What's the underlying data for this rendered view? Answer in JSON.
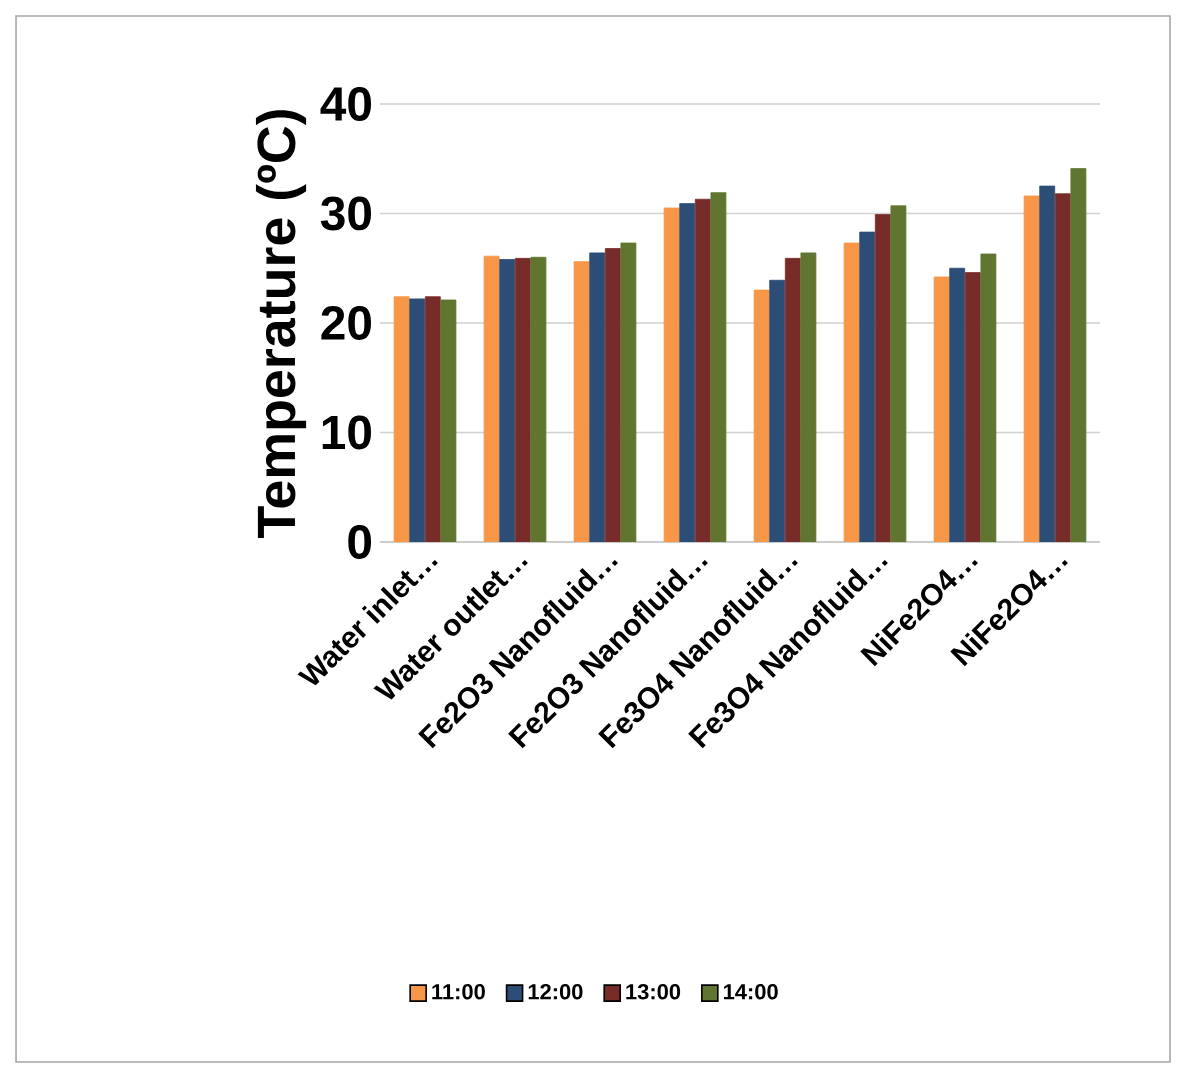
{
  "chart_data": {
    "type": "bar",
    "ylabel": "Temperature (ºC)",
    "categories": [
      "Water inlet…",
      "Water outlet…",
      "Fe2O3 Nanofluid…",
      "Fe2O3 Nanofluid…",
      "Fe3O4 Nanofluid…",
      "Fe3O4 Nanofluid…",
      "NiFe2O4…",
      "NiFe2O4…"
    ],
    "series": [
      {
        "name": "11:00",
        "color": "#f79646",
        "values": [
          22.4,
          26.1,
          25.6,
          30.5,
          23.0,
          27.3,
          24.2,
          31.6
        ]
      },
      {
        "name": "12:00",
        "color": "#2c4d75",
        "values": [
          22.2,
          25.8,
          26.4,
          30.9,
          23.9,
          28.3,
          25.0,
          32.5
        ]
      },
      {
        "name": "13:00",
        "color": "#772c2a",
        "values": [
          22.4,
          25.9,
          26.8,
          31.3,
          25.9,
          29.9,
          24.6,
          31.8
        ]
      },
      {
        "name": "14:00",
        "color": "#5f7530",
        "values": [
          22.1,
          26.0,
          27.3,
          31.9,
          26.4,
          30.7,
          26.3,
          34.1
        ]
      }
    ],
    "ylim": [
      0,
      40
    ],
    "yticks": [
      0,
      10,
      20,
      30,
      40
    ],
    "grid": "y",
    "legend": "bottom"
  }
}
